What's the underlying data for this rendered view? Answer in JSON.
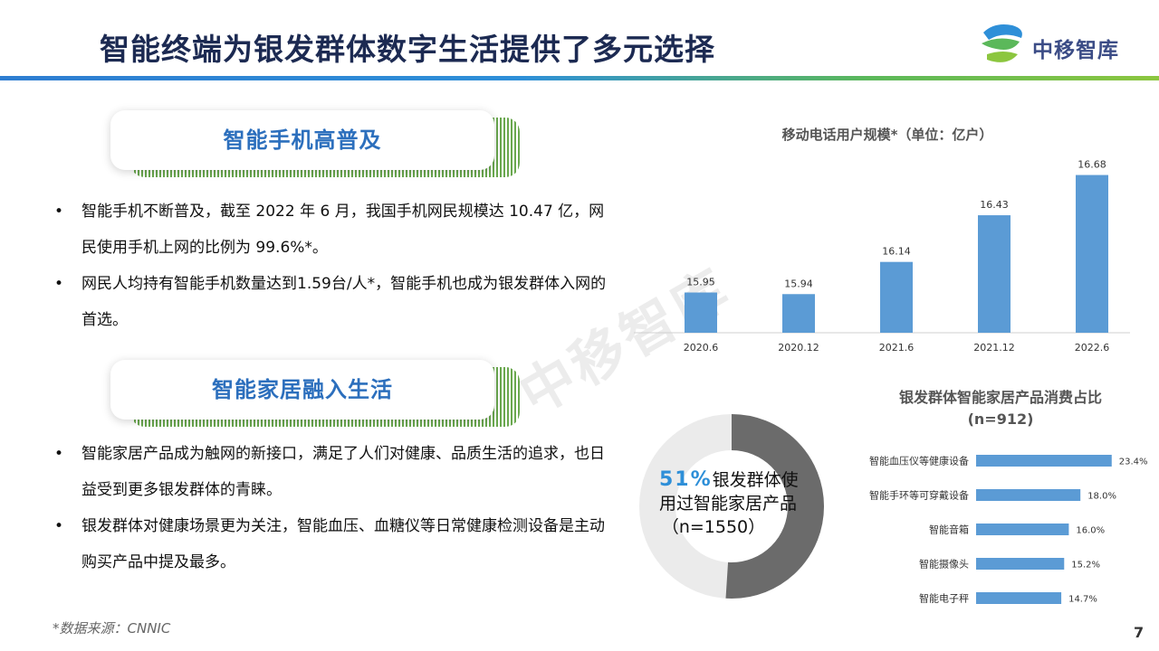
{
  "header": {
    "title": "智能终端为银发群体数字生活提供了多元选择",
    "logo_text": "中移智库",
    "watermark": "中移智库"
  },
  "section1": {
    "heading": "智能手机高普及",
    "bullets": [
      "智能手机不断普及，截至 2022 年 6 月，我国手机网民规模达 10.47 亿，网民使用手机上网的比例为 99.6%*。",
      "网民人均持有智能手机数量达到1.59台/人*，智能手机也成为银发群体入网的首选。"
    ]
  },
  "section2": {
    "heading": "智能家居融入生活",
    "bullets": [
      "智能家居产品成为触网的新接口，满足了人们对健康、品质生活的追求，也日益受到更多银发群体的青睐。",
      "银发群体对健康场景更为关注，智能血压、血糖仪等日常健康检测设备是主动购买产品中提及最多。"
    ]
  },
  "donut": {
    "pct": "51%",
    "label": "银发群体使用过智能家居产品",
    "n": "（n=1550）",
    "value": 51
  },
  "source": "*数据来源：CNNIC",
  "page_number": "7",
  "colors": {
    "accent": "#5b9bd5",
    "title": "#1c2a52",
    "heading": "#2c6fbd",
    "donut_main": "#6b6b6b",
    "donut_rest": "#ebebeb"
  },
  "chart_data": [
    {
      "type": "bar",
      "title": "移动电话用户规模*（单位：亿户）",
      "categories": [
        "2020.6",
        "2020.12",
        "2021.6",
        "2021.12",
        "2022.6"
      ],
      "values": [
        15.95,
        15.94,
        16.14,
        16.43,
        16.68
      ],
      "value_labels": [
        "15.95",
        "15.94",
        "16.14",
        "16.43",
        "16.68"
      ],
      "ylim": [
        15.7,
        16.7
      ]
    },
    {
      "type": "bar",
      "orientation": "horizontal",
      "title": "银发群体智能家居产品消费占比(n=912)",
      "categories": [
        "智能血压仪等健康设备",
        "智能手环等可穿戴设备",
        "智能音箱",
        "智能摄像头",
        "智能电子秤"
      ],
      "values": [
        23.4,
        18.0,
        16.0,
        15.2,
        14.7
      ],
      "value_labels": [
        "23.4%",
        "18.0%",
        "16.0%",
        "15.2%",
        "14.7%"
      ],
      "xlim": [
        0,
        25
      ]
    }
  ]
}
